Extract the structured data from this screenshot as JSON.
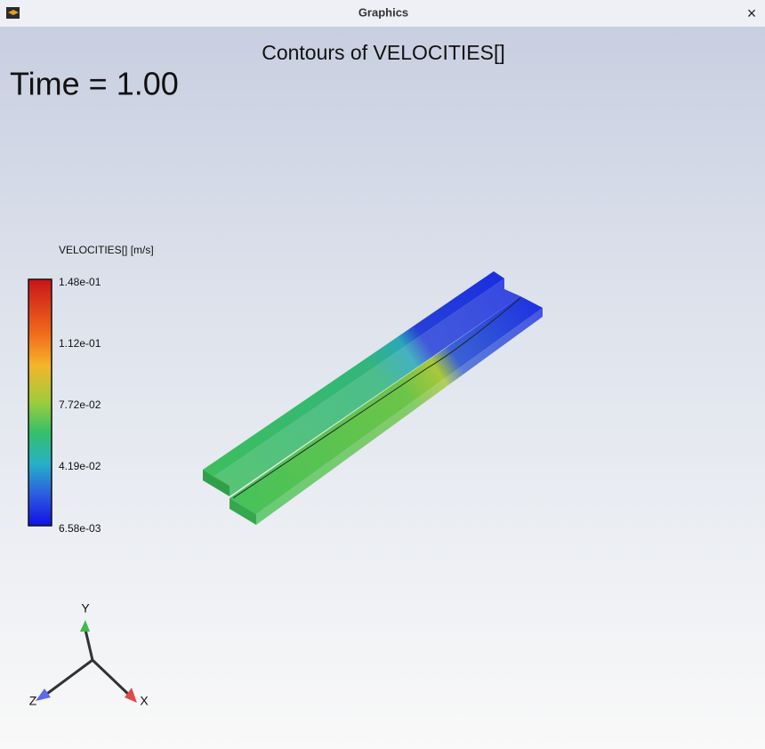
{
  "window": {
    "title": "Graphics",
    "close": "×"
  },
  "graphics": {
    "title": "Contours of VELOCITIES[]",
    "time": "Time = 1.00"
  },
  "legend": {
    "title": "VELOCITIES[] [m/s]",
    "labels": [
      "1.48e-01",
      "1.12e-01",
      "7.72e-02",
      "4.19e-02",
      "6.58e-03"
    ]
  },
  "axes": {
    "y": "Y",
    "z": "Z",
    "x": "X"
  }
}
